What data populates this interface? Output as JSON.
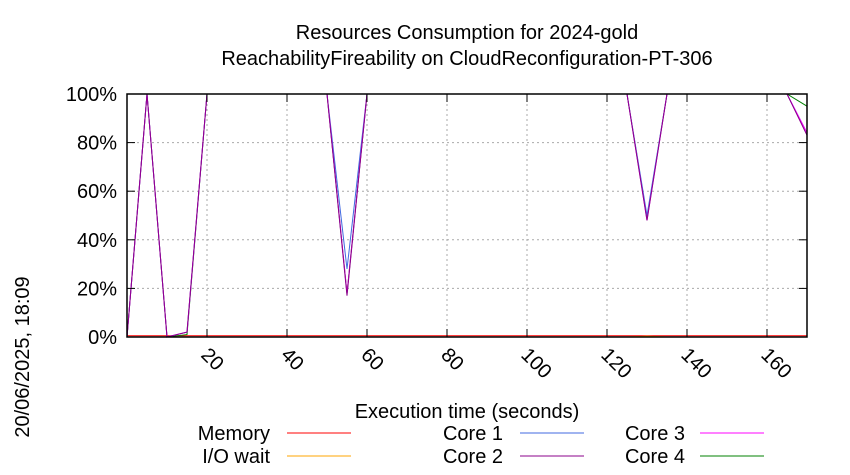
{
  "chart_data": {
    "type": "line",
    "title": "Resources Consumption for 2024-gold",
    "subtitle": "ReachabilityFireability on CloudReconfiguration-PT-306",
    "xlabel": "Execution time (seconds)",
    "ylabel": "",
    "side_label": "20/06/2025, 18:09",
    "xlim": [
      0,
      170
    ],
    "ylim": [
      0,
      100
    ],
    "x_ticks": [
      20,
      40,
      60,
      80,
      100,
      120,
      140,
      160
    ],
    "y_ticks": [
      0,
      20,
      40,
      60,
      80,
      100
    ],
    "y_tick_labels": [
      "0%",
      "20%",
      "40%",
      "60%",
      "80%",
      "100%"
    ],
    "grid": true,
    "legend_position": "bottom",
    "series": [
      {
        "name": "Memory",
        "color": "#ff0000",
        "x": [
          0,
          5,
          10,
          15,
          20,
          50,
          55,
          60,
          125,
          130,
          135,
          165,
          170
        ],
        "y": [
          0.5,
          0.5,
          0.5,
          0.5,
          0.5,
          0.5,
          0.5,
          0.5,
          0.5,
          0.5,
          0.5,
          0.5,
          0.5
        ]
      },
      {
        "name": "I/O wait",
        "color": "#ffa500",
        "x": [
          0,
          20,
          50,
          55,
          60,
          125,
          130,
          135,
          170
        ],
        "y": [
          0,
          0,
          0,
          0,
          0,
          0,
          0.3,
          0,
          0
        ]
      },
      {
        "name": "Core 1",
        "color": "#4169e1",
        "x": [
          0,
          5,
          10,
          15,
          20,
          50,
          55,
          60,
          125,
          130,
          135,
          165,
          170
        ],
        "y": [
          0,
          100,
          0,
          2,
          100,
          100,
          28,
          100,
          100,
          50,
          100,
          100,
          84
        ]
      },
      {
        "name": "Core 2",
        "color": "#8b008b",
        "x": [
          0,
          5,
          10,
          15,
          20,
          50,
          55,
          60,
          125,
          130,
          135,
          165,
          170
        ],
        "y": [
          0,
          100,
          0,
          2,
          100,
          100,
          17,
          100,
          100,
          48,
          100,
          100,
          83
        ]
      },
      {
        "name": "Core 3",
        "color": "#ff00ff",
        "x": [
          0,
          5,
          10,
          15,
          20,
          50,
          55,
          60,
          125,
          130,
          135,
          165,
          170
        ],
        "y": [
          0,
          100,
          0,
          2,
          100,
          100,
          18,
          100,
          100,
          48,
          100,
          100,
          84
        ]
      },
      {
        "name": "Core 4",
        "color": "#008000",
        "x": [
          0,
          5,
          10,
          15,
          20,
          50,
          55,
          60,
          125,
          130,
          135,
          165,
          170
        ],
        "y": [
          0,
          100,
          0,
          1,
          100,
          100,
          18,
          100,
          100,
          49,
          100,
          100,
          95
        ]
      }
    ]
  }
}
